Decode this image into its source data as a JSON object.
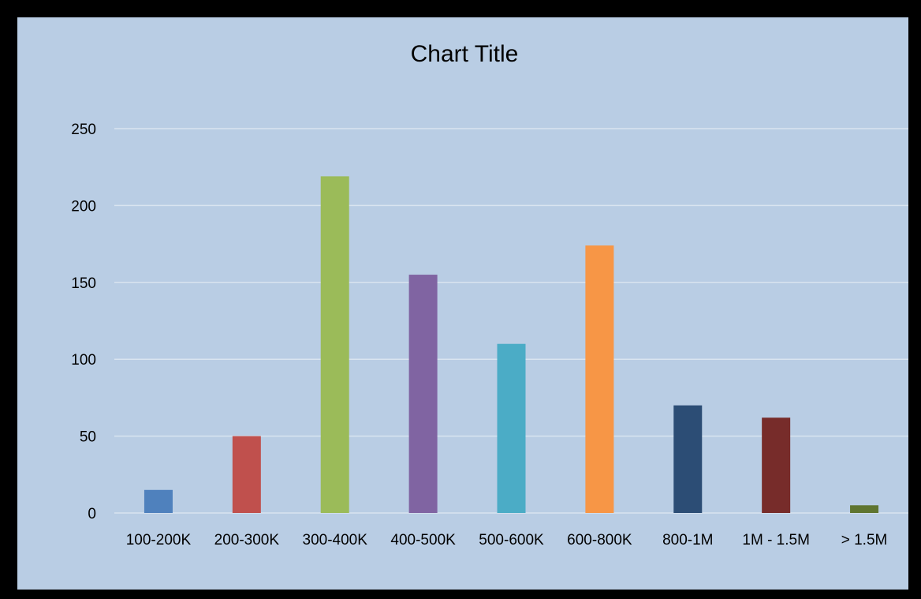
{
  "chart_data": {
    "type": "bar",
    "title": "Chart Title",
    "xlabel": "",
    "ylabel": "",
    "categories": [
      "100-200K",
      "200-300K",
      "300-400K",
      "400-500K",
      "500-600K",
      "600-800K",
      "800-1M",
      "1M - 1.5M",
      "> 1.5M"
    ],
    "values": [
      15,
      50,
      219,
      155,
      110,
      174,
      70,
      62,
      5
    ],
    "colors": [
      "#4f81bd",
      "#c0504d",
      "#9bbb59",
      "#8064a2",
      "#4bacc6",
      "#f79646",
      "#2c4d75",
      "#772c2a",
      "#5f7530"
    ],
    "ylim": [
      0,
      250
    ],
    "yticks": [
      0,
      50,
      100,
      150,
      200,
      250
    ],
    "grid": true,
    "legend": "none"
  },
  "style": {
    "plot_background": "#b9cde4",
    "frame_color": "#000000",
    "gridline_color": "#d9e4f0"
  }
}
